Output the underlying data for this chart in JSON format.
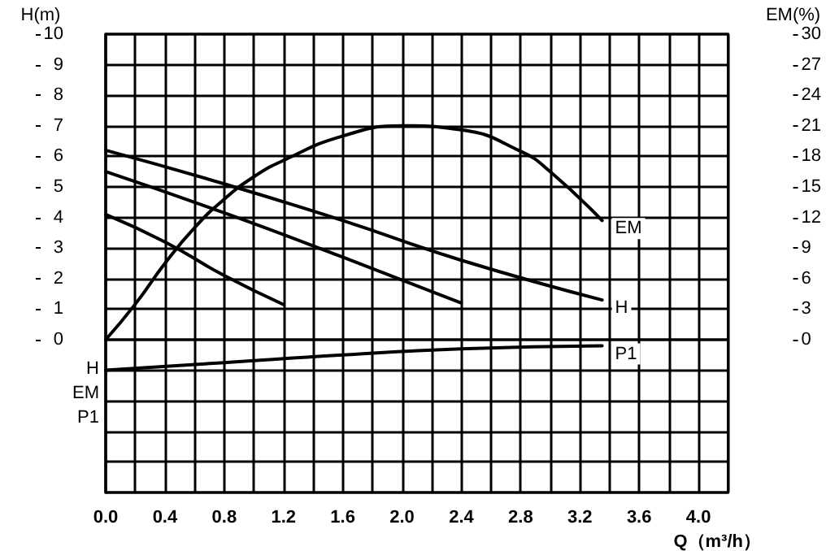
{
  "chart_data": {
    "type": "line",
    "ylabel": "H(m)",
    "y2label": "EM(%)",
    "xlabel": "Q（m³/h）",
    "xlim": [
      0,
      4.2
    ],
    "xticks": [
      {
        "value": 0,
        "label": "0.0"
      },
      {
        "value": 0.2,
        "label": null
      },
      {
        "value": 0.4,
        "label": "0.4"
      },
      {
        "value": 0.6,
        "label": null
      },
      {
        "value": 0.8,
        "label": "0.8"
      },
      {
        "value": 1.0,
        "label": null
      },
      {
        "value": 1.2,
        "label": "1.2"
      },
      {
        "value": 1.4,
        "label": null
      },
      {
        "value": 1.6,
        "label": "1.6"
      },
      {
        "value": 1.8,
        "label": null
      },
      {
        "value": 2.0,
        "label": "2.0"
      },
      {
        "value": 2.2,
        "label": null
      },
      {
        "value": 2.4,
        "label": "2.4"
      },
      {
        "value": 2.6,
        "label": null
      },
      {
        "value": 2.8,
        "label": "2.8"
      },
      {
        "value": 3.0,
        "label": null
      },
      {
        "value": 3.2,
        "label": "3.2"
      },
      {
        "value": 3.4,
        "label": null
      },
      {
        "value": 3.6,
        "label": "3.6"
      },
      {
        "value": 3.8,
        "label": null
      },
      {
        "value": 4.0,
        "label": "4.0"
      },
      {
        "value": 4.2,
        "label": null
      }
    ],
    "ylim": [
      -5,
      10
    ],
    "yticks": [
      {
        "value": -5,
        "label": null
      },
      {
        "value": -4,
        "label": null
      },
      {
        "value": -3,
        "label": null
      },
      {
        "value": -2,
        "label": null
      },
      {
        "value": -1,
        "label": null
      },
      0,
      1,
      2,
      3,
      4,
      5,
      6,
      7,
      8,
      9,
      10
    ],
    "y2lim": [
      -15,
      30
    ],
    "y2ticks": [
      0,
      3,
      6,
      9,
      12,
      15,
      18,
      21,
      24,
      27,
      30
    ],
    "grid": true,
    "series": [
      {
        "color": "#000000",
        "x": [
          0,
          0.4,
          0.8,
          1.2
        ],
        "values": [
          4.1,
          3.2,
          2.1,
          1.15
        ]
      },
      {
        "color": "#000000",
        "x": [
          0,
          0.8,
          1.6,
          2.4
        ],
        "values": [
          5.5,
          4.15,
          2.7,
          1.2
        ]
      },
      {
        "name": "H",
        "color": "#000000",
        "x": [
          0,
          0.8,
          1.6,
          2.4,
          3.35
        ],
        "values": [
          6.2,
          5.1,
          3.9,
          2.6,
          1.3
        ]
      },
      {
        "name": "EM",
        "color": "#000000",
        "axis": "y2",
        "x": [
          0,
          0.2,
          0.4,
          0.6,
          0.8,
          1.0,
          1.2,
          1.6,
          2.0,
          2.4,
          2.8,
          3.0,
          3.35
        ],
        "values": [
          0,
          3.5,
          7.5,
          11,
          13.8,
          16,
          17.6,
          20,
          21,
          20.6,
          18.5,
          16.5,
          11.7
        ]
      },
      {
        "name": "P1",
        "color": "#000000",
        "x": [
          0,
          0.8,
          1.6,
          2.4,
          3.35
        ],
        "values": [
          -1.0,
          -0.75,
          -0.5,
          -0.3,
          -0.2
        ]
      }
    ],
    "annotations": [
      "H",
      "EM",
      "P1"
    ]
  }
}
